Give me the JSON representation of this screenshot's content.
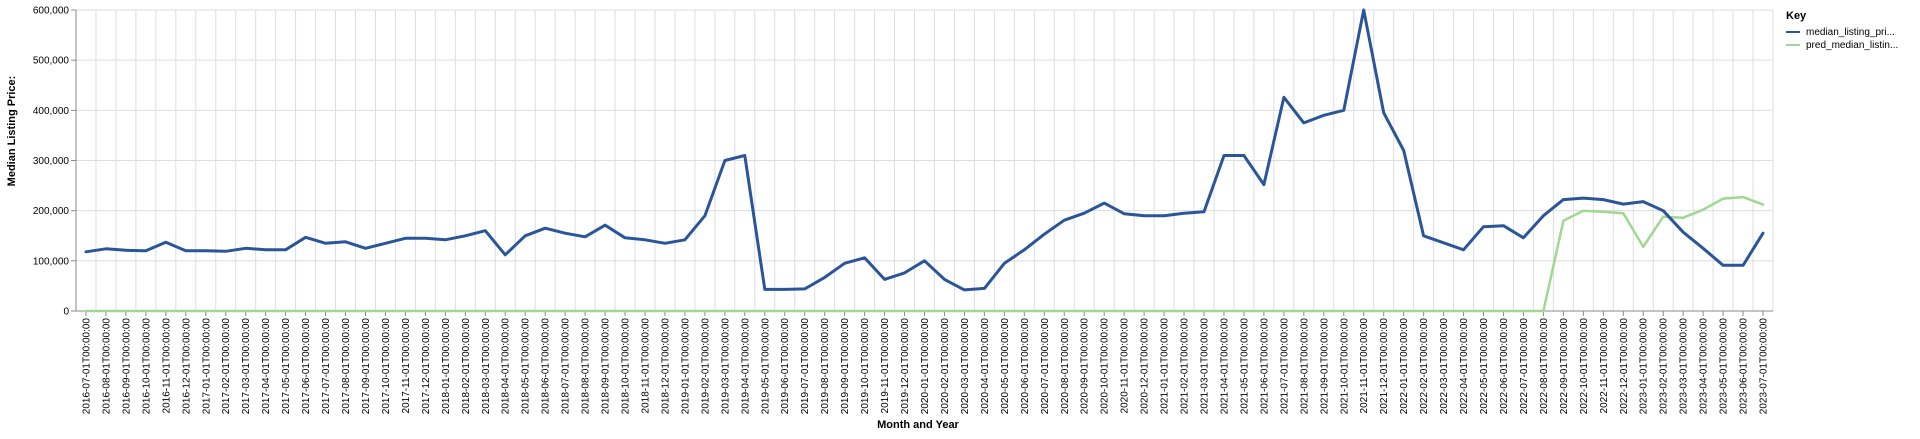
{
  "chart_data": {
    "type": "line",
    "xlabel": "Month and Year",
    "ylabel": "Median Listing Price:",
    "ylim": [
      0,
      600000
    ],
    "y_ticks": [
      "0",
      "100,000",
      "200,000",
      "300,000",
      "400,000",
      "500,000",
      "600,000"
    ],
    "y_tick_values": [
      0,
      100000,
      200000,
      300000,
      400000,
      500000,
      600000
    ],
    "grid": true,
    "legend": {
      "title": "Key",
      "position": "top-right"
    },
    "categories": [
      "2016-07-01T00:00:00",
      "2016-08-01T00:00:00",
      "2016-09-01T00:00:00",
      "2016-10-01T00:00:00",
      "2016-11-01T00:00:00",
      "2016-12-01T00:00:00",
      "2017-01-01T00:00:00",
      "2017-02-01T00:00:00",
      "2017-03-01T00:00:00",
      "2017-04-01T00:00:00",
      "2017-05-01T00:00:00",
      "2017-06-01T00:00:00",
      "2017-07-01T00:00:00",
      "2017-08-01T00:00:00",
      "2017-09-01T00:00:00",
      "2017-10-01T00:00:00",
      "2017-11-01T00:00:00",
      "2017-12-01T00:00:00",
      "2018-01-01T00:00:00",
      "2018-02-01T00:00:00",
      "2018-03-01T00:00:00",
      "2018-04-01T00:00:00",
      "2018-05-01T00:00:00",
      "2018-06-01T00:00:00",
      "2018-07-01T00:00:00",
      "2018-08-01T00:00:00",
      "2018-09-01T00:00:00",
      "2018-10-01T00:00:00",
      "2018-11-01T00:00:00",
      "2018-12-01T00:00:00",
      "2019-01-01T00:00:00",
      "2019-02-01T00:00:00",
      "2019-03-01T00:00:00",
      "2019-04-01T00:00:00",
      "2019-05-01T00:00:00",
      "2019-06-01T00:00:00",
      "2019-07-01T00:00:00",
      "2019-08-01T00:00:00",
      "2019-09-01T00:00:00",
      "2019-10-01T00:00:00",
      "2019-11-01T00:00:00",
      "2019-12-01T00:00:00",
      "2020-01-01T00:00:00",
      "2020-02-01T00:00:00",
      "2020-03-01T00:00:00",
      "2020-04-01T00:00:00",
      "2020-05-01T00:00:00",
      "2020-06-01T00:00:00",
      "2020-07-01T00:00:00",
      "2020-08-01T00:00:00",
      "2020-09-01T00:00:00",
      "2020-10-01T00:00:00",
      "2020-11-01T00:00:00",
      "2020-12-01T00:00:00",
      "2021-01-01T00:00:00",
      "2021-02-01T00:00:00",
      "2021-03-01T00:00:00",
      "2021-04-01T00:00:00",
      "2021-05-01T00:00:00",
      "2021-06-01T00:00:00",
      "2021-07-01T00:00:00",
      "2021-08-01T00:00:00",
      "2021-09-01T00:00:00",
      "2021-10-01T00:00:00",
      "2021-11-01T00:00:00",
      "2021-12-01T00:00:00",
      "2022-01-01T00:00:00",
      "2022-02-01T00:00:00",
      "2022-03-01T00:00:00",
      "2022-04-01T00:00:00",
      "2022-05-01T00:00:00",
      "2022-06-01T00:00:00",
      "2022-07-01T00:00:00",
      "2022-08-01T00:00:00",
      "2022-09-01T00:00:00",
      "2022-10-01T00:00:00",
      "2022-11-01T00:00:00",
      "2022-12-01T00:00:00",
      "2023-01-01T00:00:00",
      "2023-02-01T00:00:00",
      "2023-03-01T00:00:00",
      "2023-04-01T00:00:00",
      "2023-05-01T00:00:00",
      "2023-06-01T00:00:00",
      "2023-07-01T00:00:00"
    ],
    "series": [
      {
        "name": "median_listing_pri...",
        "color": "#2a5599",
        "values": [
          118000,
          124000,
          121000,
          120000,
          137000,
          120000,
          120000,
          119000,
          125000,
          122000,
          122000,
          147000,
          135000,
          138000,
          125000,
          135000,
          145000,
          145000,
          142000,
          150000,
          160000,
          112000,
          150000,
          165000,
          155000,
          148000,
          171000,
          146000,
          142000,
          135000,
          142000,
          190000,
          300000,
          310000,
          43000,
          43000,
          44000,
          67000,
          95000,
          106000,
          63000,
          76000,
          100000,
          63000,
          42000,
          45000,
          95000,
          122000,
          153000,
          181000,
          195000,
          215000,
          194000,
          190000,
          190000,
          195000,
          198000,
          310000,
          310000,
          252000,
          426000,
          375000,
          390000,
          400000,
          600000,
          395000,
          320000,
          150000,
          136000,
          122000,
          168000,
          170000,
          146000,
          190000,
          222000,
          225000,
          222000,
          213000,
          218000,
          200000,
          157000,
          125000,
          91000,
          91000,
          155000
        ]
      },
      {
        "name": "pred_median_listin...",
        "color": "#9fd793",
        "values": [
          0,
          0,
          0,
          0,
          0,
          0,
          0,
          0,
          0,
          0,
          0,
          0,
          0,
          0,
          0,
          0,
          0,
          0,
          0,
          0,
          0,
          0,
          0,
          0,
          0,
          0,
          0,
          0,
          0,
          0,
          0,
          0,
          0,
          0,
          0,
          0,
          0,
          0,
          0,
          0,
          0,
          0,
          0,
          0,
          0,
          0,
          0,
          0,
          0,
          0,
          0,
          0,
          0,
          0,
          0,
          0,
          0,
          0,
          0,
          0,
          0,
          0,
          0,
          0,
          0,
          0,
          0,
          0,
          0,
          0,
          0,
          0,
          0,
          0,
          180000,
          200000,
          198000,
          195000,
          128000,
          188000,
          186000,
          202000,
          224000,
          227000,
          212000
        ]
      }
    ]
  }
}
